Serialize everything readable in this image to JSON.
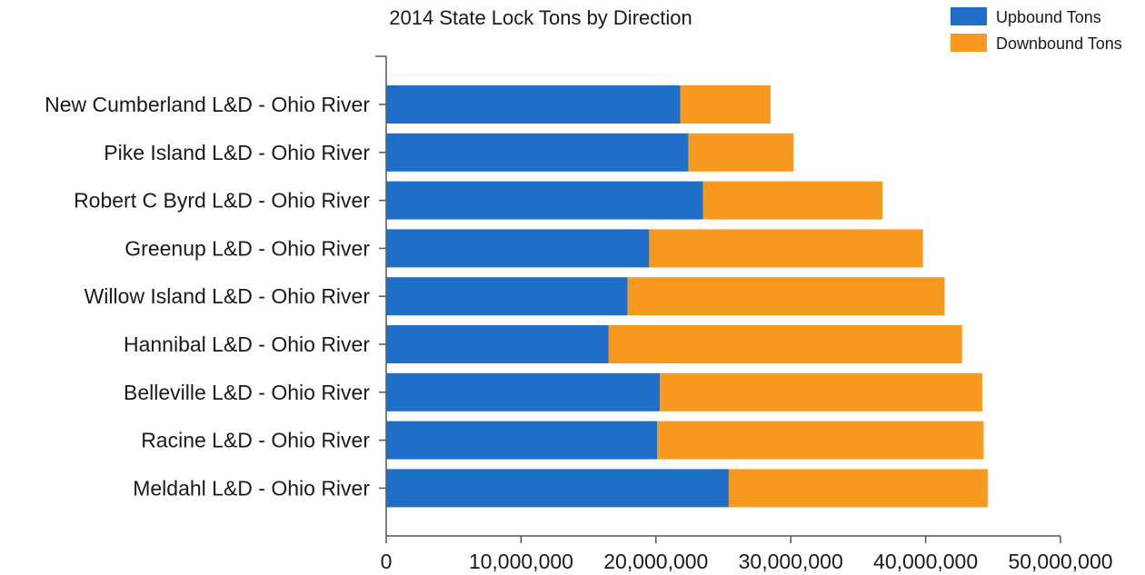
{
  "chart_data": {
    "type": "bar",
    "orientation": "horizontal",
    "stacked": true,
    "title": "2014 State Lock Tons by Direction",
    "xlabel": "",
    "ylabel": "",
    "xlim": [
      0,
      50000000
    ],
    "x_ticks": [
      0,
      10000000,
      20000000,
      30000000,
      40000000,
      50000000
    ],
    "x_tick_labels": [
      "0",
      "10,000,000",
      "20,000,000",
      "30,000,000",
      "40,000,000",
      "50,000,000"
    ],
    "grid": false,
    "legend_position": "top-right",
    "categories": [
      "New Cumberland L&D - Ohio River",
      "Pike Island L&D - Ohio River",
      "Robert C Byrd L&D - Ohio River",
      "Greenup L&D - Ohio River",
      "Willow Island L&D - Ohio River",
      "Hannibal L&D - Ohio River",
      "Belleville L&D - Ohio River",
      "Racine L&D - Ohio River",
      "Meldahl L&D - Ohio River"
    ],
    "series": [
      {
        "name": "Upbound Tons",
        "color": "#1f6fc9",
        "values": [
          21800000,
          22400000,
          23500000,
          19500000,
          17900000,
          16500000,
          20300000,
          20100000,
          25400000
        ]
      },
      {
        "name": "Downbound Tons",
        "color": "#f7991f",
        "values": [
          6700000,
          7800000,
          13300000,
          20300000,
          23500000,
          26200000,
          23900000,
          24200000,
          19200000
        ]
      }
    ]
  }
}
